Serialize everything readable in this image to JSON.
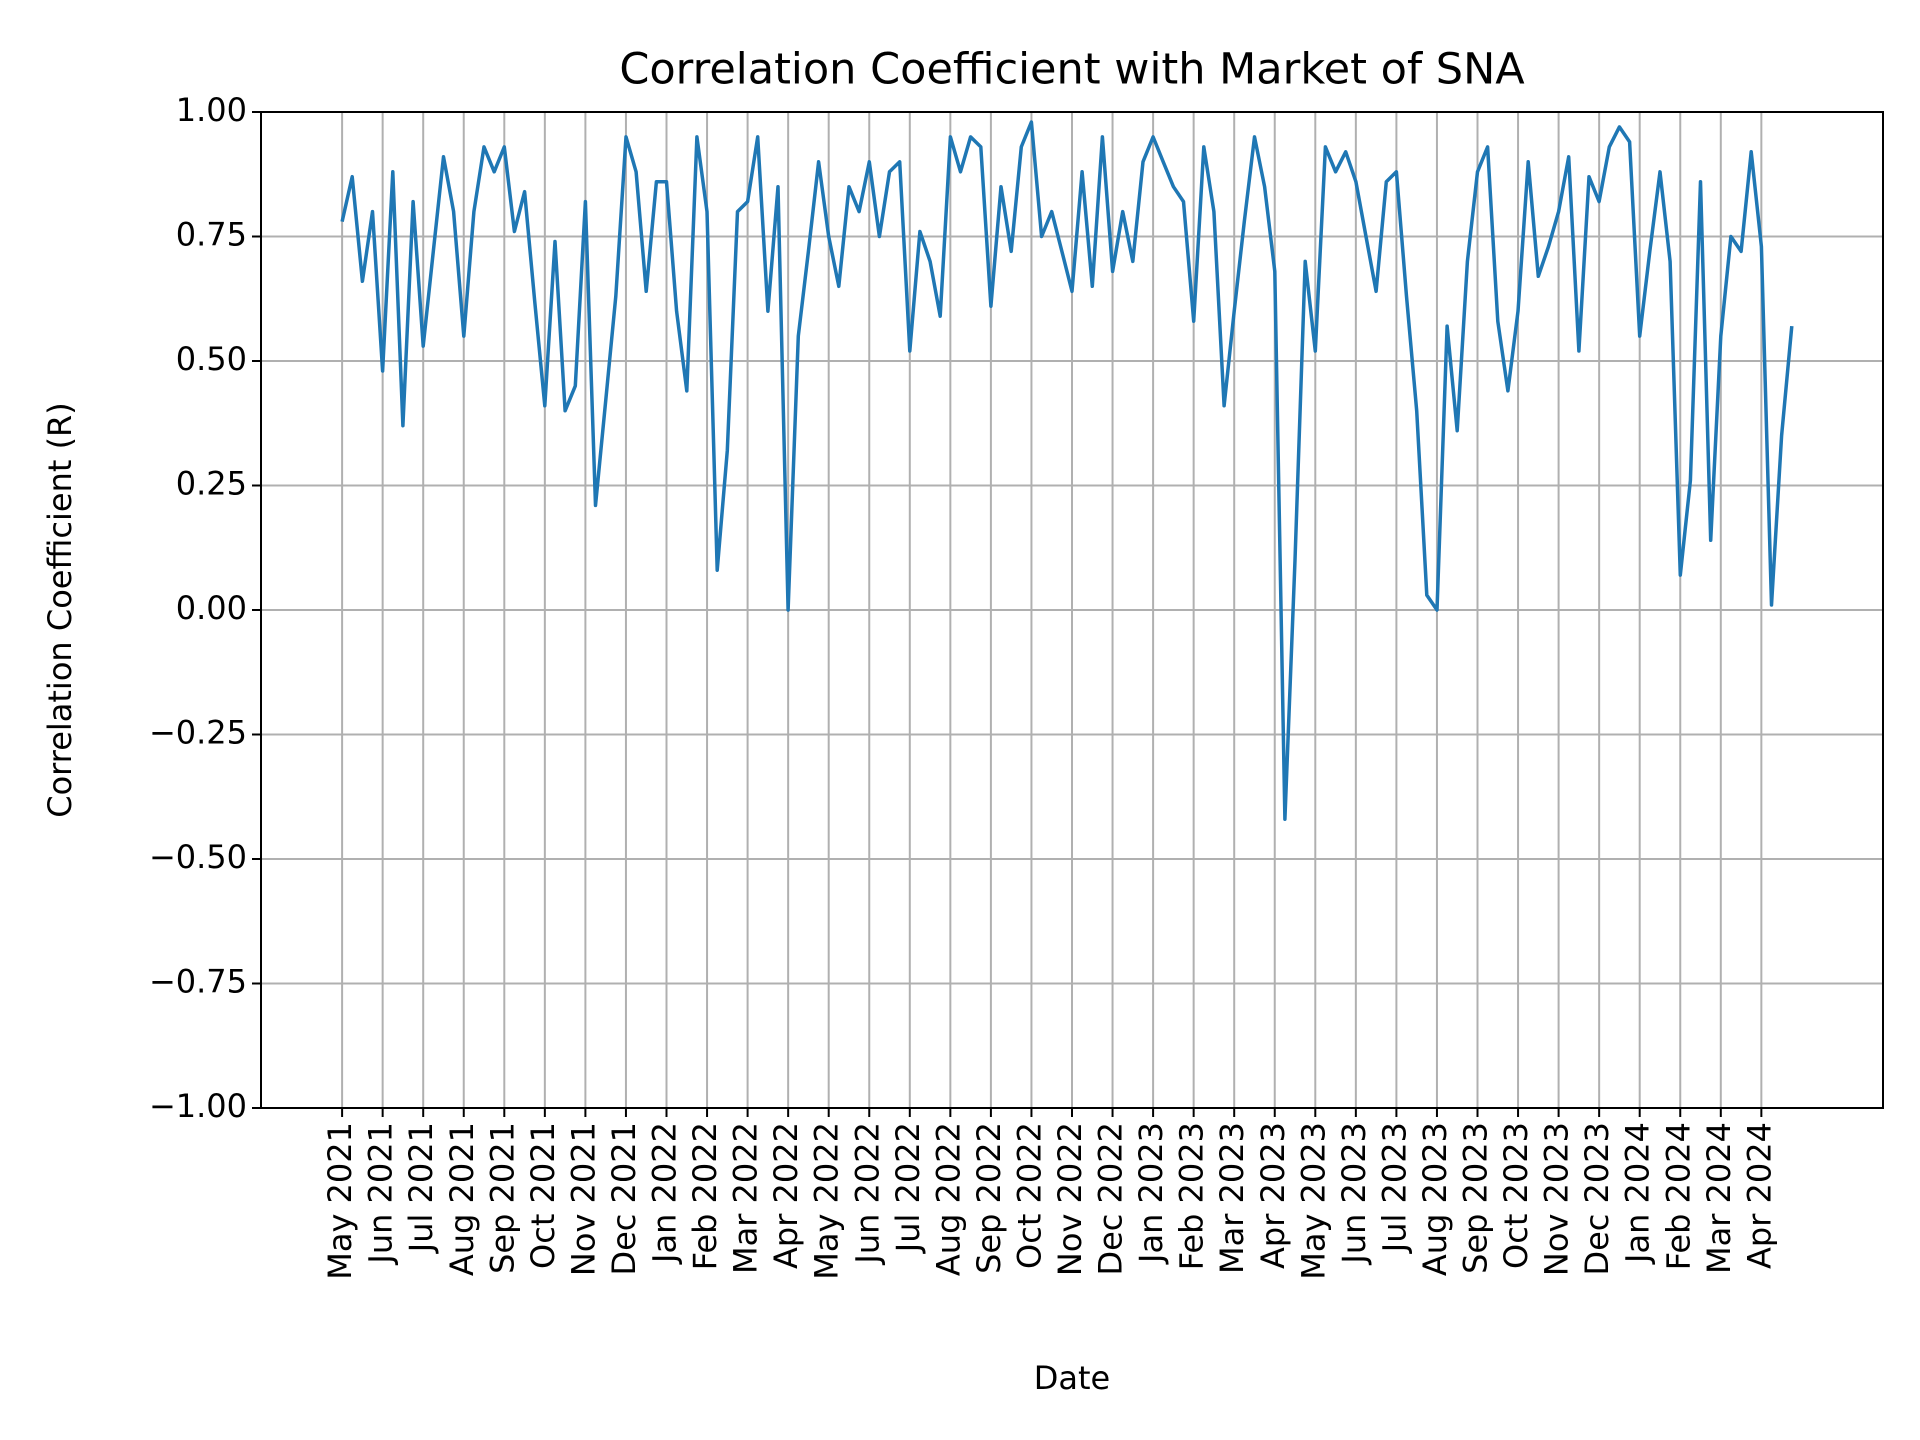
{
  "chart_data": {
    "type": "line",
    "title": "Correlation Coefficient with Market of SNA",
    "xlabel": "Date",
    "ylabel": "Correlation Coefficient (R)",
    "x": [
      "2021-05",
      "2021-05",
      "2021-05",
      "2021-05",
      "2021-06",
      "2021-06",
      "2021-06",
      "2021-06",
      "2021-07",
      "2021-07",
      "2021-07",
      "2021-07",
      "2021-08",
      "2021-08",
      "2021-08",
      "2021-08",
      "2021-09",
      "2021-09",
      "2021-09",
      "2021-09",
      "2021-10",
      "2021-10",
      "2021-10",
      "2021-10",
      "2021-11",
      "2021-11",
      "2021-11",
      "2021-11",
      "2021-12",
      "2021-12",
      "2021-12",
      "2021-12",
      "2022-01",
      "2022-01",
      "2022-01",
      "2022-01",
      "2022-02",
      "2022-02",
      "2022-02",
      "2022-02",
      "2022-03",
      "2022-03",
      "2022-03",
      "2022-03",
      "2022-04",
      "2022-04",
      "2022-04",
      "2022-04",
      "2022-05",
      "2022-05",
      "2022-05",
      "2022-05",
      "2022-06",
      "2022-06",
      "2022-06",
      "2022-06",
      "2022-07",
      "2022-07",
      "2022-07",
      "2022-07",
      "2022-08",
      "2022-08",
      "2022-08",
      "2022-08",
      "2022-09",
      "2022-09",
      "2022-09",
      "2022-09",
      "2022-10",
      "2022-10",
      "2022-10",
      "2022-10",
      "2022-11",
      "2022-11",
      "2022-11",
      "2022-11",
      "2022-12",
      "2022-12",
      "2022-12",
      "2022-12",
      "2023-01",
      "2023-01",
      "2023-01",
      "2023-01",
      "2023-02",
      "2023-02",
      "2023-02",
      "2023-02",
      "2023-03",
      "2023-03",
      "2023-03",
      "2023-03",
      "2023-04",
      "2023-04",
      "2023-04",
      "2023-04",
      "2023-05",
      "2023-05",
      "2023-05",
      "2023-05",
      "2023-06",
      "2023-06",
      "2023-06",
      "2023-06",
      "2023-07",
      "2023-07",
      "2023-07",
      "2023-07",
      "2023-08",
      "2023-08",
      "2023-08",
      "2023-08",
      "2023-09",
      "2023-09",
      "2023-09",
      "2023-09",
      "2023-10",
      "2023-10",
      "2023-10",
      "2023-10",
      "2023-11",
      "2023-11",
      "2023-11",
      "2023-11",
      "2023-12",
      "2023-12",
      "2023-12",
      "2023-12",
      "2024-01",
      "2024-01",
      "2024-01",
      "2024-01",
      "2024-02",
      "2024-02",
      "2024-02",
      "2024-02",
      "2024-03",
      "2024-03",
      "2024-03",
      "2024-03",
      "2024-04",
      "2024-04",
      "2024-04",
      "2024-04"
    ],
    "series": [
      {
        "color": "#1f77b4",
        "values": [
          0.78,
          0.87,
          0.66,
          0.8,
          0.48,
          0.88,
          0.37,
          0.82,
          0.53,
          0.72,
          0.91,
          0.8,
          0.55,
          0.8,
          0.93,
          0.88,
          0.93,
          0.76,
          0.84,
          0.62,
          0.41,
          0.74,
          0.4,
          0.45,
          0.82,
          0.21,
          0.42,
          0.63,
          0.95,
          0.88,
          0.64,
          0.86,
          0.86,
          0.6,
          0.44,
          0.95,
          0.8,
          0.08,
          0.32,
          0.8,
          0.82,
          0.95,
          0.6,
          0.85,
          0.0,
          0.55,
          0.72,
          0.9,
          0.75,
          0.65,
          0.85,
          0.8,
          0.9,
          0.75,
          0.88,
          0.9,
          0.52,
          0.76,
          0.7,
          0.59,
          0.95,
          0.88,
          0.95,
          0.93,
          0.61,
          0.85,
          0.72,
          0.93,
          0.98,
          0.75,
          0.8,
          0.72,
          0.64,
          0.88,
          0.65,
          0.95,
          0.68,
          0.8,
          0.7,
          0.9,
          0.95,
          0.9,
          0.85,
          0.82,
          0.58,
          0.93,
          0.8,
          0.41,
          0.6,
          0.78,
          0.95,
          0.85,
          0.68,
          -0.42,
          0.1,
          0.7,
          0.52,
          0.93,
          0.88,
          0.92,
          0.86,
          0.75,
          0.64,
          0.86,
          0.88,
          0.63,
          0.4,
          0.03,
          0.0,
          0.57,
          0.36,
          0.7,
          0.88,
          0.93,
          0.58,
          0.44,
          0.6,
          0.9,
          0.67,
          0.73,
          0.8,
          0.91,
          0.52,
          0.87,
          0.82,
          0.93,
          0.97,
          0.94,
          0.55,
          0.72,
          0.88,
          0.7,
          0.07,
          0.26,
          0.86,
          0.14,
          0.55,
          0.75,
          0.72,
          0.92,
          0.73,
          0.01,
          0.35,
          0.57
        ]
      }
    ],
    "xlim": [
      "2021-03",
      "2024-07"
    ],
    "xticks": [
      {
        "value": "2021-05",
        "label": "May 2021"
      },
      {
        "value": "2021-06",
        "label": "Jun 2021"
      },
      {
        "value": "2021-07",
        "label": "Jul 2021"
      },
      {
        "value": "2021-08",
        "label": "Aug 2021"
      },
      {
        "value": "2021-09",
        "label": "Sep 2021"
      },
      {
        "value": "2021-10",
        "label": "Oct 2021"
      },
      {
        "value": "2021-11",
        "label": "Nov 2021"
      },
      {
        "value": "2021-12",
        "label": "Dec 2021"
      },
      {
        "value": "2022-01",
        "label": "Jan 2022"
      },
      {
        "value": "2022-02",
        "label": "Feb 2022"
      },
      {
        "value": "2022-03",
        "label": "Mar 2022"
      },
      {
        "value": "2022-04",
        "label": "Apr 2022"
      },
      {
        "value": "2022-05",
        "label": "May 2022"
      },
      {
        "value": "2022-06",
        "label": "Jun 2022"
      },
      {
        "value": "2022-07",
        "label": "Jul 2022"
      },
      {
        "value": "2022-08",
        "label": "Aug 2022"
      },
      {
        "value": "2022-09",
        "label": "Sep 2022"
      },
      {
        "value": "2022-10",
        "label": "Oct 2022"
      },
      {
        "value": "2022-11",
        "label": "Nov 2022"
      },
      {
        "value": "2022-12",
        "label": "Dec 2022"
      },
      {
        "value": "2023-01",
        "label": "Jan 2023"
      },
      {
        "value": "2023-02",
        "label": "Feb 2023"
      },
      {
        "value": "2023-03",
        "label": "Mar 2023"
      },
      {
        "value": "2023-04",
        "label": "Apr 2023"
      },
      {
        "value": "2023-05",
        "label": "May 2023"
      },
      {
        "value": "2023-06",
        "label": "Jun 2023"
      },
      {
        "value": "2023-07",
        "label": "Jul 2023"
      },
      {
        "value": "2023-08",
        "label": "Aug 2023"
      },
      {
        "value": "2023-09",
        "label": "Sep 2023"
      },
      {
        "value": "2023-10",
        "label": "Oct 2023"
      },
      {
        "value": "2023-11",
        "label": "Nov 2023"
      },
      {
        "value": "2023-12",
        "label": "Dec 2023"
      },
      {
        "value": "2024-01",
        "label": "Jan 2024"
      },
      {
        "value": "2024-02",
        "label": "Feb 2024"
      },
      {
        "value": "2024-03",
        "label": "Mar 2024"
      },
      {
        "value": "2024-04",
        "label": "Apr 2024"
      }
    ],
    "ylim": [
      -1,
      1
    ],
    "yticks": [
      {
        "value": -1,
        "label": "−1.00"
      },
      {
        "value": -0.75,
        "label": "−0.75"
      },
      {
        "value": -0.5,
        "label": "−0.50"
      },
      {
        "value": -0.25,
        "label": "−0.25"
      },
      {
        "value": 0,
        "label": "0.00"
      },
      {
        "value": 0.25,
        "label": "0.25"
      },
      {
        "value": 0.5,
        "label": "0.50"
      },
      {
        "value": 0.75,
        "label": "0.75"
      },
      {
        "value": 1,
        "label": "1.00"
      }
    ],
    "grid": true
  }
}
